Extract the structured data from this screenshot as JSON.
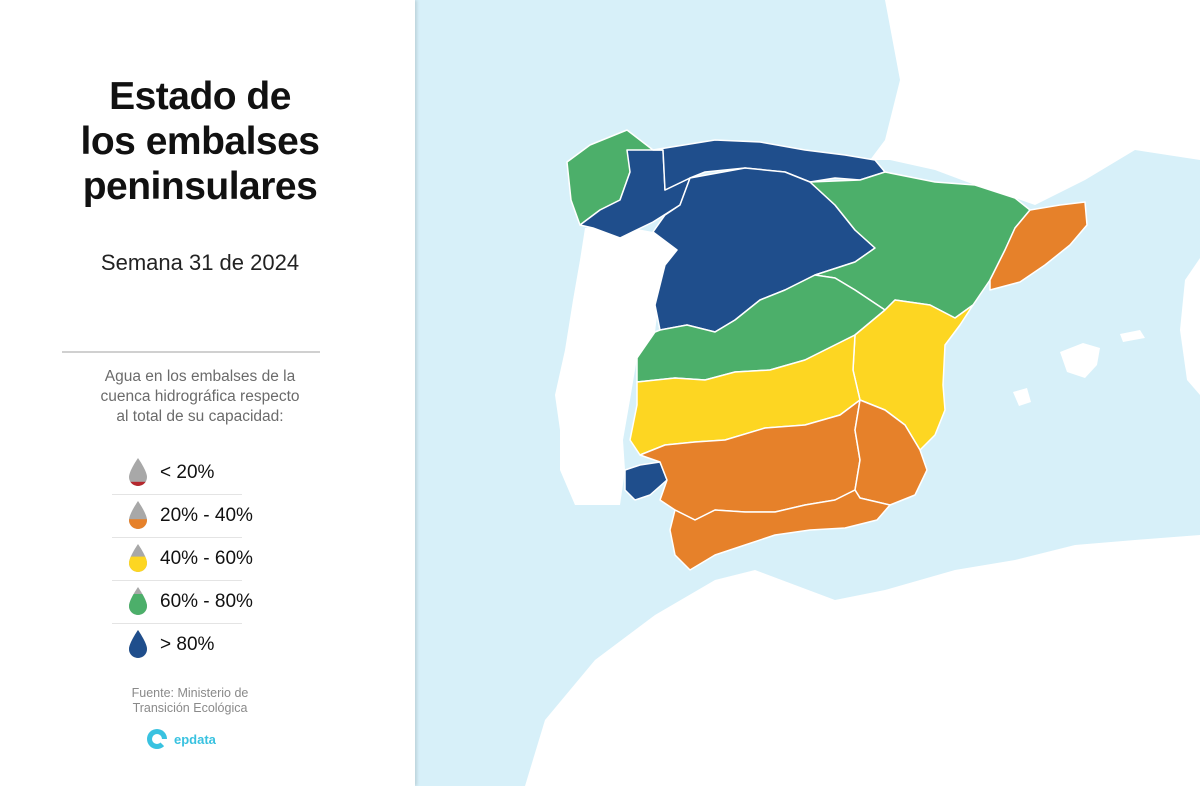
{
  "title": {
    "line1": "Estado de",
    "line2": "los embalses",
    "line3": "peninsulares"
  },
  "subtitle": "Semana 31 de 2024",
  "legend": {
    "description_lines": [
      "Agua en los embalses de la",
      "cuenca hidrográfica respecto",
      "al total de su capacidad:"
    ],
    "items": [
      {
        "label": "< 20%",
        "color": "#b5272d",
        "fill_fraction": 0.15
      },
      {
        "label": "20% - 40%",
        "color": "#e6812a",
        "fill_fraction": 0.35
      },
      {
        "label": "40% - 60%",
        "color": "#fdd622",
        "fill_fraction": 0.55
      },
      {
        "label": "60% - 80%",
        "color": "#4caf6a",
        "fill_fraction": 0.75
      },
      {
        "label": "> 80%",
        "color": "#1f4e8c",
        "fill_fraction": 1.0
      }
    ]
  },
  "source_lines": [
    "Fuente: Ministerio de",
    "Transición Ecológica"
  ],
  "brand": "epdata",
  "map": {
    "sea_color": "#d7f0f9",
    "land_color": "#ffffff",
    "border_color": "#ffffff",
    "regions": [
      {
        "name": "Galicia-Costa",
        "range": "60% - 80%",
        "color": "#4caf6a"
      },
      {
        "name": "Miño-Sil",
        "range": "> 80%",
        "color": "#1f4e8c"
      },
      {
        "name": "Cantábrico",
        "range": "> 80%",
        "color": "#1f4e8c"
      },
      {
        "name": "Duero",
        "range": "> 80%",
        "color": "#1f4e8c"
      },
      {
        "name": "Ebro",
        "range": "60% - 80%",
        "color": "#4caf6a"
      },
      {
        "name": "Cuencas internas de Cataluña",
        "range": "20% - 40%",
        "color": "#e6812a"
      },
      {
        "name": "Tajo",
        "range": "60% - 80%",
        "color": "#4caf6a"
      },
      {
        "name": "Júcar",
        "range": "40% - 60%",
        "color": "#fdd622"
      },
      {
        "name": "Guadiana",
        "range": "40% - 60%",
        "color": "#fdd622"
      },
      {
        "name": "Tinto, Odiel y Piedras",
        "range": "> 80%",
        "color": "#1f4e8c"
      },
      {
        "name": "Guadalquivir",
        "range": "20% - 40%",
        "color": "#e6812a"
      },
      {
        "name": "Segura",
        "range": "20% - 40%",
        "color": "#e6812a"
      },
      {
        "name": "Cuenca Mediterránea Andaluza",
        "range": "20% - 40%",
        "color": "#e6812a"
      }
    ]
  }
}
